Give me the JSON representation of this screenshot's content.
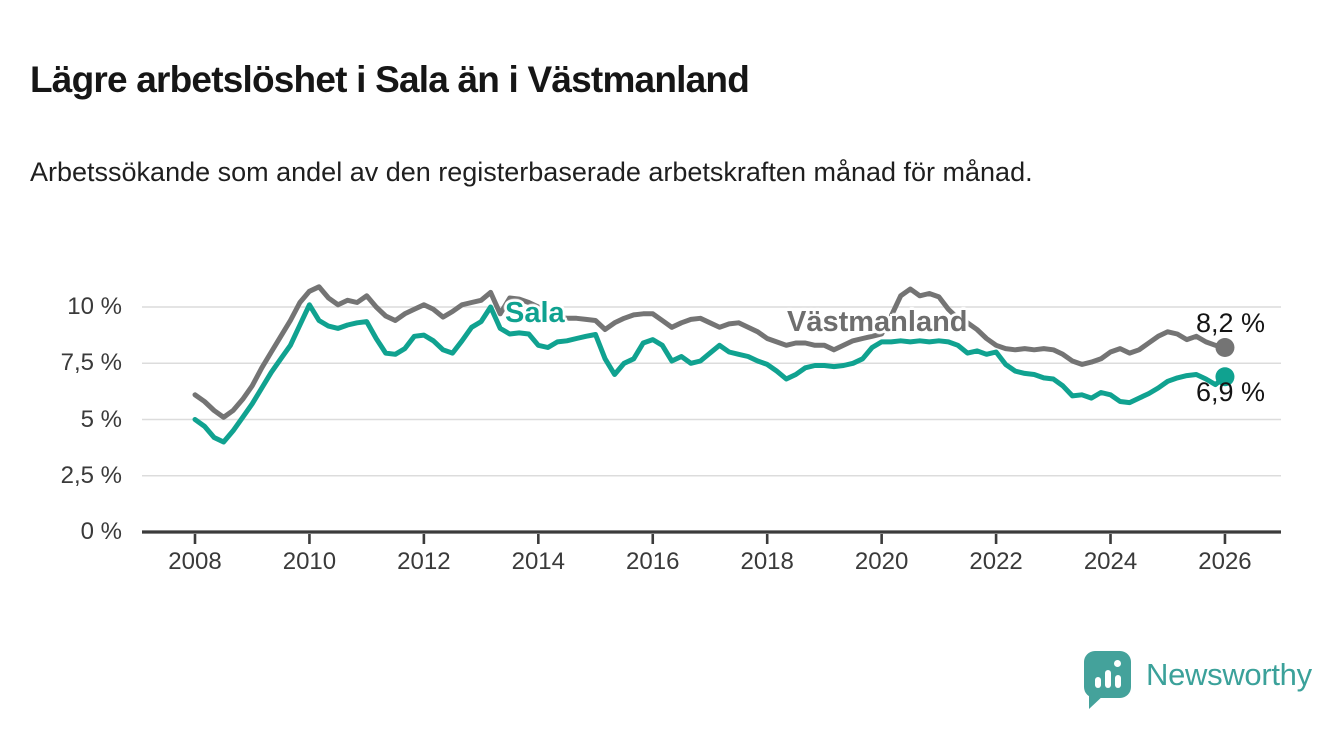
{
  "header": {
    "title": "Lägre arbetslöshet i Sala än i Västmanland",
    "subtitle": "Arbetssökande som andel av den registerbaserade arbetskraften månad för månad."
  },
  "chart_data": {
    "type": "line",
    "title": "Lägre arbetslöshet i Sala än i Västmanland",
    "subtitle": "Arbetssökande som andel av den registerbaserade arbetskraften månad för månad.",
    "unit": "%",
    "x_start_year": 2008,
    "points_per_year": 6,
    "xlim": [
      2007.1,
      2027
    ],
    "ylim": [
      0,
      11.2
    ],
    "grid": true,
    "x_ticks": [
      2008,
      2010,
      2012,
      2014,
      2016,
      2018,
      2020,
      2022,
      2024,
      2026
    ],
    "y_ticks": [
      {
        "value": 0,
        "label": "0 %"
      },
      {
        "value": 2.5,
        "label": "2,5 %"
      },
      {
        "value": 5,
        "label": "5 %"
      },
      {
        "value": 7.5,
        "label": "7,5 %"
      },
      {
        "value": 10,
        "label": "10 %"
      }
    ],
    "axis_color": "#3b3b3b",
    "grid_color": "#dcdcdc",
    "series": [
      {
        "name": "Sala",
        "color": "#10a290",
        "end_label": "6,9 %",
        "last_value": 6.9,
        "values": [
          5.0,
          4.7,
          4.2,
          4.0,
          4.5,
          5.1,
          5.7,
          6.4,
          7.1,
          7.7,
          8.3,
          9.2,
          10.1,
          9.4,
          9.15,
          9.05,
          9.2,
          9.3,
          9.35,
          8.6,
          7.95,
          7.9,
          8.15,
          8.7,
          8.75,
          8.5,
          8.1,
          7.95,
          8.5,
          9.1,
          9.35,
          10.0,
          9.05,
          8.8,
          8.85,
          8.8,
          8.3,
          8.2,
          8.45,
          8.5,
          8.6,
          8.7,
          8.78,
          7.7,
          7.0,
          7.5,
          7.7,
          8.4,
          8.55,
          8.3,
          7.6,
          7.8,
          7.5,
          7.6,
          7.95,
          8.3,
          8.0,
          7.9,
          7.8,
          7.6,
          7.45,
          7.15,
          6.8,
          7.0,
          7.3,
          7.4,
          7.4,
          7.35,
          7.4,
          7.5,
          7.7,
          8.2,
          8.45,
          8.45,
          8.5,
          8.45,
          8.5,
          8.45,
          8.5,
          8.45,
          8.3,
          7.95,
          8.05,
          7.9,
          8.0,
          7.45,
          7.15,
          7.05,
          7.0,
          6.85,
          6.8,
          6.5,
          6.05,
          6.1,
          5.95,
          6.2,
          6.1,
          5.8,
          5.75,
          5.95,
          6.15,
          6.4,
          6.7,
          6.85,
          6.95,
          7.0,
          6.8,
          6.55,
          6.9
        ]
      },
      {
        "name": "Västmanland",
        "color": "#747474",
        "end_label": "8,2 %",
        "last_value": 8.2,
        "values": [
          6.1,
          5.8,
          5.4,
          5.1,
          5.4,
          5.9,
          6.5,
          7.3,
          8.0,
          8.7,
          9.4,
          10.2,
          10.7,
          10.9,
          10.4,
          10.1,
          10.3,
          10.2,
          10.5,
          10.0,
          9.6,
          9.4,
          9.7,
          9.9,
          10.1,
          9.9,
          9.55,
          9.8,
          10.1,
          10.2,
          10.3,
          10.65,
          9.7,
          10.4,
          10.35,
          10.2,
          10.0,
          9.8,
          9.6,
          9.5,
          9.5,
          9.45,
          9.4,
          9.0,
          9.3,
          9.5,
          9.65,
          9.7,
          9.7,
          9.4,
          9.1,
          9.3,
          9.45,
          9.5,
          9.3,
          9.1,
          9.25,
          9.3,
          9.1,
          8.9,
          8.6,
          8.45,
          8.3,
          8.4,
          8.4,
          8.3,
          8.3,
          8.1,
          8.3,
          8.5,
          8.6,
          8.7,
          8.8,
          9.6,
          10.5,
          10.8,
          10.5,
          10.6,
          10.45,
          9.9,
          9.5,
          9.3,
          9.0,
          8.6,
          8.3,
          8.15,
          8.1,
          8.15,
          8.1,
          8.15,
          8.1,
          7.9,
          7.6,
          7.45,
          7.55,
          7.7,
          8.0,
          8.15,
          7.95,
          8.1,
          8.4,
          8.7,
          8.9,
          8.8,
          8.55,
          8.7,
          8.45,
          8.3,
          8.2
        ]
      }
    ]
  },
  "footer": {
    "brand": "Newsworthy",
    "brand_color": "#3ba19a",
    "logo_icon": "speech-bubble-bar-chart-icon"
  }
}
